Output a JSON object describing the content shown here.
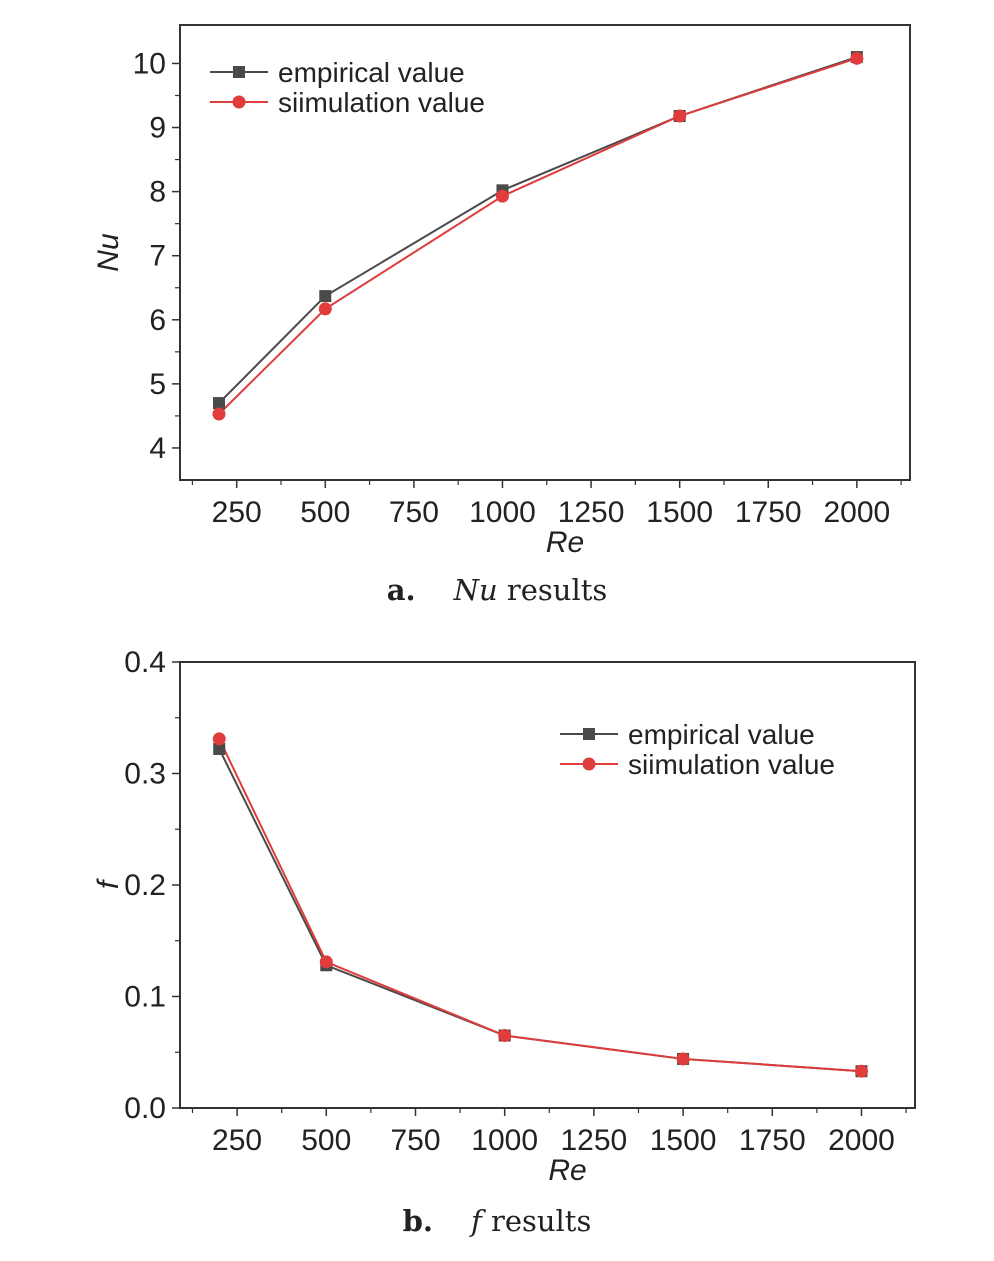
{
  "captions": [
    {
      "letter": "a.",
      "symbol": "Nu",
      "text": " results"
    },
    {
      "letter": "b.",
      "symbol": "f",
      "text": " results"
    }
  ],
  "colors": {
    "empirical": "#4a4a4a",
    "simulation": "#e03c3c",
    "axis": "#333333"
  },
  "chart_data": [
    {
      "type": "line",
      "xlabel": "Re",
      "ylabel": "Nu",
      "xlim": [
        90,
        2150
      ],
      "ylim": [
        3.5,
        10.6
      ],
      "xticks": [
        250,
        500,
        750,
        1000,
        1250,
        1500,
        1750,
        2000
      ],
      "yticks": [
        4,
        5,
        6,
        7,
        8,
        9,
        10
      ],
      "legend_position": "top-left",
      "series": [
        {
          "name": "empirical value",
          "marker": "square",
          "color": "#4a4a4a",
          "x": [
            200,
            500,
            1000,
            1500,
            2000
          ],
          "y": [
            4.7,
            6.37,
            8.02,
            9.18,
            10.1
          ]
        },
        {
          "name": "siimulation value",
          "marker": "circle",
          "color": "#e03c3c",
          "x": [
            200,
            500,
            1000,
            1500,
            2000
          ],
          "y": [
            4.53,
            6.17,
            7.93,
            9.18,
            10.08
          ]
        }
      ]
    },
    {
      "type": "line",
      "xlabel": "Re",
      "ylabel": "f",
      "xlim": [
        90,
        2150
      ],
      "ylim": [
        0,
        0.4
      ],
      "xticks": [
        250,
        500,
        750,
        1000,
        1250,
        1500,
        1750,
        2000
      ],
      "yticks": [
        0.0,
        0.1,
        0.2,
        0.3,
        0.4
      ],
      "ytick_labels": [
        "0.0",
        "0.1",
        "0.2",
        "0.3",
        "0.4"
      ],
      "legend_position": "top-right",
      "series": [
        {
          "name": "empirical value",
          "marker": "square",
          "color": "#4a4a4a",
          "x": [
            200,
            500,
            1000,
            1500,
            2000
          ],
          "y": [
            0.322,
            0.128,
            0.065,
            0.044,
            0.033
          ]
        },
        {
          "name": "siimulation value",
          "marker": "circle",
          "color": "#e03c3c",
          "x": [
            200,
            500,
            1000,
            1500,
            2000
          ],
          "y": [
            0.331,
            0.131,
            0.065,
            0.044,
            0.033
          ]
        }
      ]
    }
  ]
}
